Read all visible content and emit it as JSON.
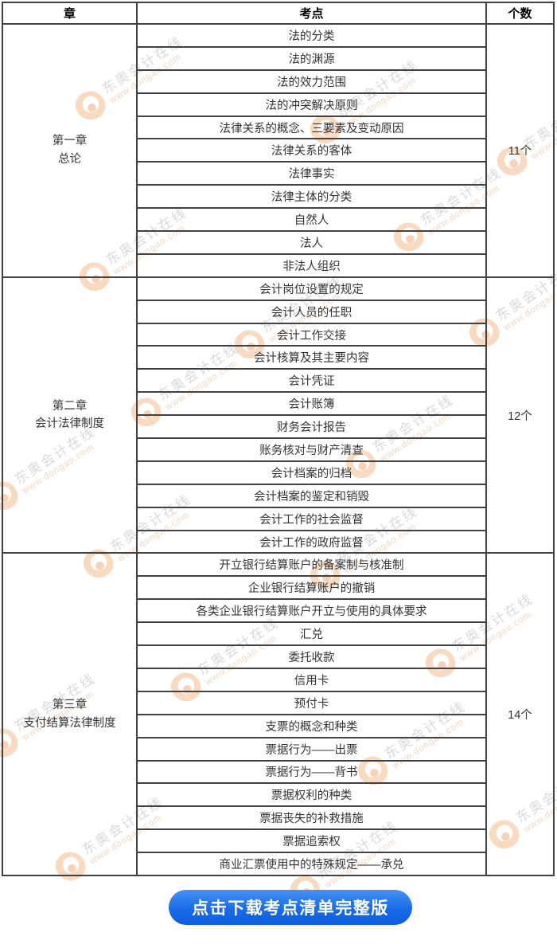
{
  "table": {
    "headers": [
      "章",
      "考点",
      "个数"
    ],
    "chapters": [
      {
        "chapter": "第一章",
        "subtitle": "总论",
        "count": "11个",
        "topics": [
          "法的分类",
          "法的渊源",
          "法的效力范围",
          "法的冲突解决原则",
          "法律关系的概念、三要素及变动原因",
          "法律关系的客体",
          "法律事实",
          "法律主体的分类",
          "自然人",
          "法人",
          "非法人组织"
        ]
      },
      {
        "chapter": "第二章",
        "subtitle": "会计法律制度",
        "count": "12个",
        "topics": [
          "会计岗位设置的规定",
          "会计人员的任职",
          "会计工作交接",
          "会计核算及其主要内容",
          "会计凭证",
          "会计账簿",
          "财务会计报告",
          "账务核对与财产清查",
          "会计档案的归档",
          "会计档案的鉴定和销毁",
          "会计工作的社会监督",
          "会计工作的政府监督"
        ]
      },
      {
        "chapter": "第三章",
        "subtitle": "支付结算法律制度",
        "count": "14个",
        "topics": [
          "开立银行结算账户的备案制与核准制",
          "企业银行结算账户的撤销",
          "各类企业银行结算账户开立与使用的具体要求",
          "汇兑",
          "委托收款",
          "信用卡",
          "预付卡",
          "支票的概念和种类",
          "票据行为——出票",
          "票据行为——背书",
          "票据权利的种类",
          "票据丧失的补救措施",
          "票据追索权",
          "商业汇票使用中的特殊规定——承兑"
        ]
      }
    ]
  },
  "watermark": {
    "brand": "东奥会计在线",
    "url": "www.dongao.com"
  },
  "download_button": {
    "label": "点击下载考点清单完整版"
  },
  "colors": {
    "border": "#414141",
    "button_gradient_start": "#4492f6",
    "button_gradient_end": "#0c5edc",
    "watermark_orange": "#f0ae77",
    "watermark_gray": "#ababab"
  }
}
